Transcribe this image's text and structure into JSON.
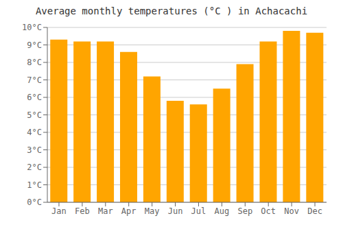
{
  "chart_data": {
    "type": "bar",
    "title": "Average monthly temperatures (°C ) in Achacachi",
    "categories": [
      "Jan",
      "Feb",
      "Mar",
      "Apr",
      "May",
      "Jun",
      "Jul",
      "Aug",
      "Sep",
      "Oct",
      "Nov",
      "Dec"
    ],
    "values": [
      9.3,
      9.2,
      9.2,
      8.6,
      7.2,
      5.8,
      5.6,
      6.5,
      7.9,
      9.2,
      9.8,
      9.7
    ],
    "color": "#FFA500",
    "ylim": [
      0,
      10
    ],
    "yticks": [
      {
        "value": 0,
        "label": "0°C"
      },
      {
        "value": 1,
        "label": "1°C"
      },
      {
        "value": 2,
        "label": "2°C"
      },
      {
        "value": 3,
        "label": "3°C"
      },
      {
        "value": 4,
        "label": "4°C"
      },
      {
        "value": 5,
        "label": "5°C"
      },
      {
        "value": 6,
        "label": "6°C"
      },
      {
        "value": 7,
        "label": "7°C"
      },
      {
        "value": 8,
        "label": "8°C"
      },
      {
        "value": 9,
        "label": "9°C"
      },
      {
        "value": 10,
        "label": "10°C"
      }
    ],
    "grid": true
  }
}
